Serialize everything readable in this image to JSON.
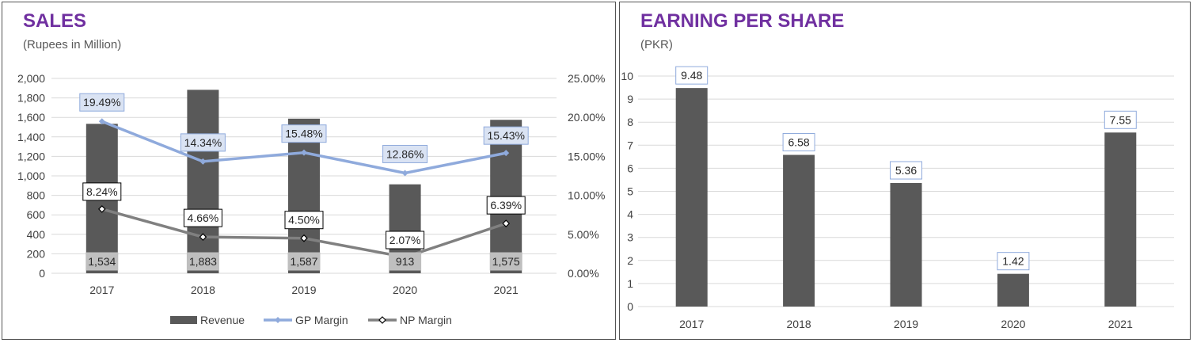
{
  "sales_panel": {
    "title": "SALES",
    "subtitle": "(Rupees in Million)"
  },
  "eps_panel": {
    "title": "EARNING PER SHARE",
    "subtitle": "(PKR)"
  },
  "colors": {
    "title": "#7030a0",
    "bar": "#595959",
    "gp_line": "#8faadc",
    "np_line": "#808080",
    "grid": "#d9d9d9"
  },
  "chart_data": [
    {
      "type": "bar",
      "title": "SALES",
      "subtitle": "(Rupees in Million)",
      "categories": [
        "2017",
        "2018",
        "2019",
        "2020",
        "2021"
      ],
      "y_ticks": [
        "0",
        "200",
        "400",
        "600",
        "800",
        "1,000",
        "1,200",
        "1,400",
        "1,600",
        "1,800",
        "2,000"
      ],
      "ylim": [
        0,
        2000
      ],
      "y2_ticks": [
        "0.00%",
        "5.00%",
        "10.00%",
        "15.00%",
        "20.00%",
        "25.00%"
      ],
      "y2lim": [
        0,
        25
      ],
      "grid": true,
      "legend_position": "bottom",
      "series": [
        {
          "name": "Revenue",
          "type": "bar",
          "axis": "left",
          "values": [
            1534,
            1883,
            1587,
            913,
            1575
          ],
          "labels": [
            "1,534",
            "1,883",
            "1,587",
            "913",
            "1,575"
          ]
        },
        {
          "name": "GP Margin",
          "type": "line",
          "axis": "right",
          "values": [
            19.49,
            14.34,
            15.48,
            12.86,
            15.43
          ],
          "labels": [
            "19.49%",
            "14.34%",
            "15.48%",
            "12.86%",
            "15.43%"
          ]
        },
        {
          "name": "NP Margin",
          "type": "line",
          "axis": "right",
          "values": [
            8.24,
            4.66,
            4.5,
            2.07,
            6.39
          ],
          "labels": [
            "8.24%",
            "4.66%",
            "4.50%",
            "2.07%",
            "6.39%"
          ]
        }
      ]
    },
    {
      "type": "bar",
      "title": "EARNING PER SHARE",
      "subtitle": "(PKR)",
      "categories": [
        "2017",
        "2018",
        "2019",
        "2020",
        "2021"
      ],
      "y_ticks": [
        "0",
        "1",
        "2",
        "3",
        "4",
        "5",
        "6",
        "7",
        "8",
        "9",
        "10"
      ],
      "ylim": [
        0,
        10
      ],
      "grid": true,
      "series": [
        {
          "values": [
            9.48,
            6.58,
            5.36,
            1.42,
            7.55
          ],
          "labels": [
            "9.48",
            "6.58",
            "5.36",
            "1.42",
            "7.55"
          ]
        }
      ]
    }
  ]
}
